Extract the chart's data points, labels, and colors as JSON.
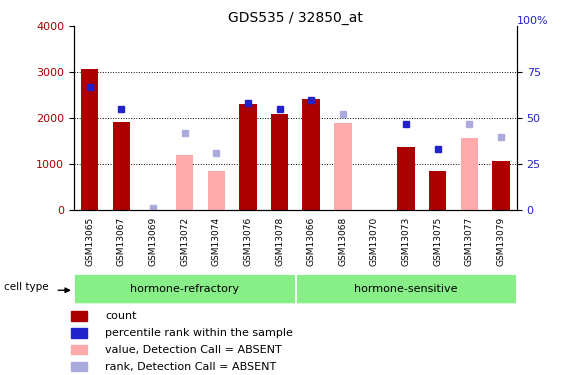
{
  "title": "GDS535 / 32850_at",
  "samples": [
    "GSM13065",
    "GSM13067",
    "GSM13069",
    "GSM13072",
    "GSM13074",
    "GSM13076",
    "GSM13078",
    "GSM13066",
    "GSM13068",
    "GSM13070",
    "GSM13073",
    "GSM13075",
    "GSM13077",
    "GSM13079"
  ],
  "count": [
    3080,
    1920,
    0,
    0,
    0,
    2300,
    2100,
    2420,
    0,
    0,
    1380,
    840,
    0,
    1060
  ],
  "count_absent": [
    0,
    0,
    0,
    1200,
    840,
    0,
    0,
    0,
    1900,
    0,
    0,
    0,
    1560,
    0
  ],
  "rank_present": [
    67,
    55,
    0,
    0,
    0,
    58,
    55,
    60,
    0,
    0,
    47,
    33,
    0,
    0
  ],
  "rank_absent": [
    0,
    0,
    1,
    42,
    31,
    0,
    0,
    0,
    52,
    0,
    0,
    0,
    47,
    40
  ],
  "groups": {
    "hormone-refractory": [
      0,
      1,
      2,
      3,
      4,
      5,
      6
    ],
    "hormone-sensitive": [
      7,
      8,
      9,
      10,
      11,
      12,
      13
    ]
  },
  "ylim_left": [
    0,
    4000
  ],
  "ylim_right": [
    0,
    100
  ],
  "yticks_left": [
    0,
    1000,
    2000,
    3000,
    4000
  ],
  "yticks_right": [
    0,
    25,
    50,
    75
  ],
  "color_count": "#aa0000",
  "color_rank_present": "#2222cc",
  "color_count_absent": "#ffaaaa",
  "color_rank_absent": "#aaaadd",
  "color_group_bg": "#88ee88",
  "color_tick_bg": "#cccccc",
  "legend_items": [
    {
      "label": "count",
      "color": "#aa0000"
    },
    {
      "label": "percentile rank within the sample",
      "color": "#2222cc"
    },
    {
      "label": "value, Detection Call = ABSENT",
      "color": "#ffaaaa"
    },
    {
      "label": "rank, Detection Call = ABSENT",
      "color": "#aaaadd"
    }
  ]
}
